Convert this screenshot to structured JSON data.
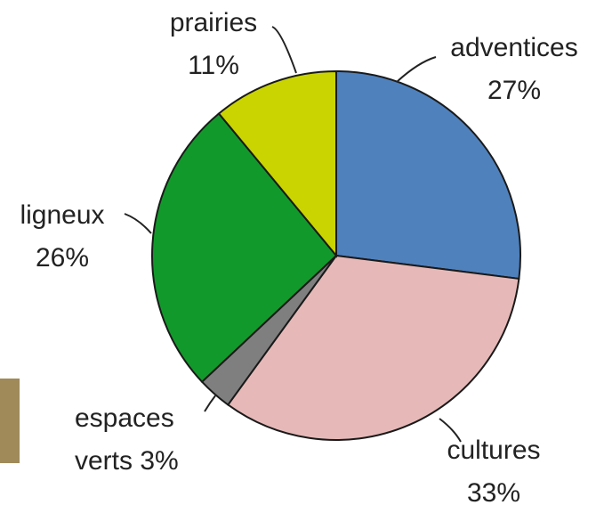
{
  "chart_data": {
    "type": "pie",
    "categories": [
      "adventices",
      "cultures",
      "espaces verts",
      "ligneux",
      "prairies"
    ],
    "values": [
      27,
      33,
      3,
      26,
      11
    ],
    "value_labels": [
      "27%",
      "33%",
      "3%",
      "26%",
      "11%"
    ],
    "colors": [
      "#4f81bd",
      "#e6b9b8",
      "#7f7f7f",
      "#12992b",
      "#c9d400"
    ]
  }
}
